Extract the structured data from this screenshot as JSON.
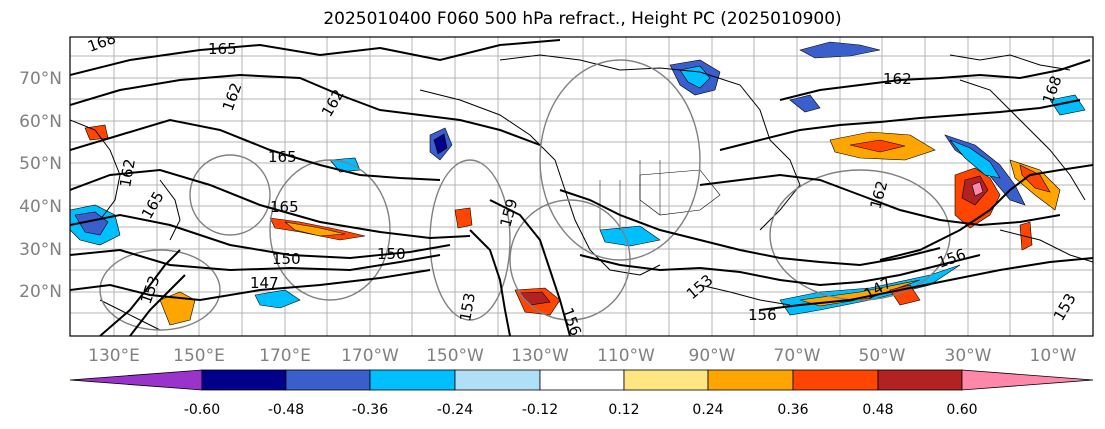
{
  "title": "2025010400 F060 500 hPa refract., Height PC (2025010900)",
  "axes": {
    "lat_labels": [
      "70°N",
      "60°N",
      "50°N",
      "40°N",
      "30°N",
      "20°N"
    ],
    "lon_labels": [
      "130°E",
      "150°E",
      "170°E",
      "170°W",
      "150°W",
      "130°W",
      "110°W",
      "90°W",
      "70°W",
      "50°W",
      "30°W",
      "10°W"
    ]
  },
  "colorbar": {
    "tick_labels": [
      "-0.60",
      "-0.48",
      "-0.36",
      "-0.24",
      "-0.12",
      "0.12",
      "0.24",
      "0.36",
      "0.48",
      "0.60"
    ],
    "colors": [
      "#9933cc",
      "#00008b",
      "#3a5fcd",
      "#00bfff",
      "#b0e0f8",
      "#ffffff",
      "#ffe680",
      "#ffa500",
      "#ff4500",
      "#b22222",
      "#ff88aa"
    ]
  },
  "contour_labels": [
    {
      "text": "165"
    },
    {
      "text": "168"
    },
    {
      "text": "162"
    },
    {
      "text": "162"
    },
    {
      "text": "162"
    },
    {
      "text": "168"
    },
    {
      "text": "165"
    },
    {
      "text": "162"
    },
    {
      "text": "165"
    },
    {
      "text": "159"
    },
    {
      "text": "162"
    },
    {
      "text": "150"
    },
    {
      "text": "150"
    },
    {
      "text": "147"
    },
    {
      "text": "153"
    },
    {
      "text": "156"
    },
    {
      "text": "153"
    },
    {
      "text": "156"
    },
    {
      "text": "153"
    },
    {
      "text": "156"
    },
    {
      "text": "147"
    },
    {
      "text": "153"
    },
    {
      "text": "165"
    }
  ]
}
